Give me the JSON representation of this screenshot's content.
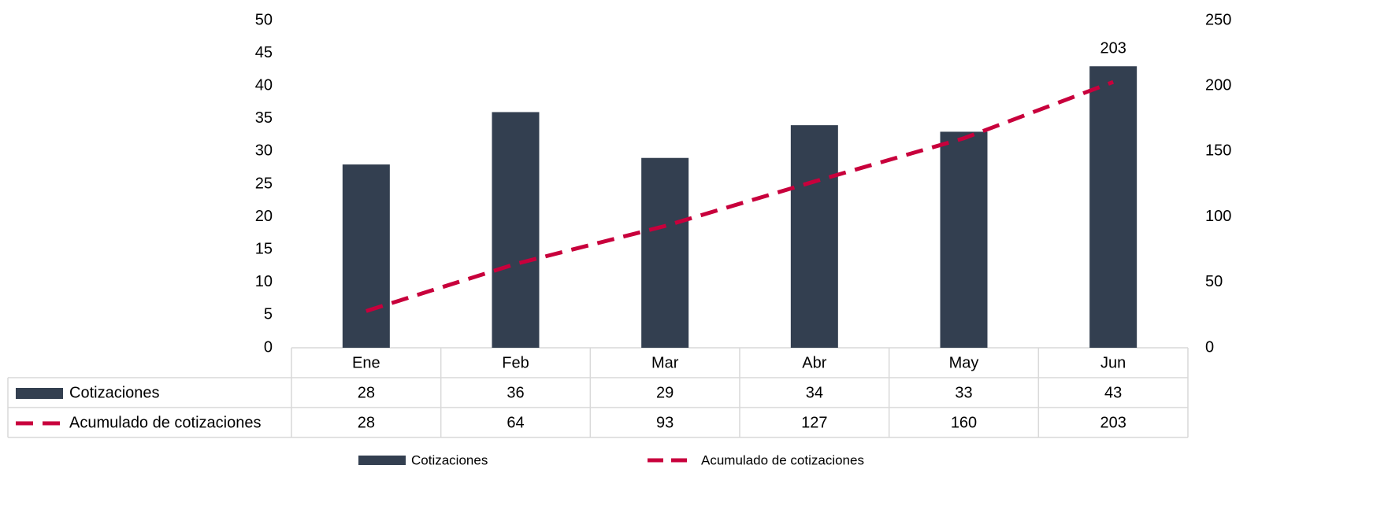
{
  "chart_data": {
    "type": "combo",
    "categories": [
      "Ene",
      "Feb",
      "Mar",
      "Abr",
      "May",
      "Jun"
    ],
    "series": [
      {
        "name": "Cotizaciones",
        "type": "bar",
        "color": "#333f50",
        "values": [
          28,
          36,
          29,
          34,
          33,
          43
        ]
      },
      {
        "name": "Acumulado de cotizaciones",
        "type": "line",
        "axis": "y2",
        "color": "#c8003c",
        "dashed": true,
        "values": [
          28,
          64,
          93,
          127,
          160,
          203
        ]
      }
    ],
    "ylim": [
      0,
      50
    ],
    "yticks": [
      0,
      5,
      10,
      15,
      20,
      25,
      30,
      35,
      40,
      45,
      50
    ],
    "y2lim": [
      0,
      250
    ],
    "y2ticks": [
      0,
      50,
      100,
      150,
      200,
      250
    ],
    "legend": "bottom"
  }
}
